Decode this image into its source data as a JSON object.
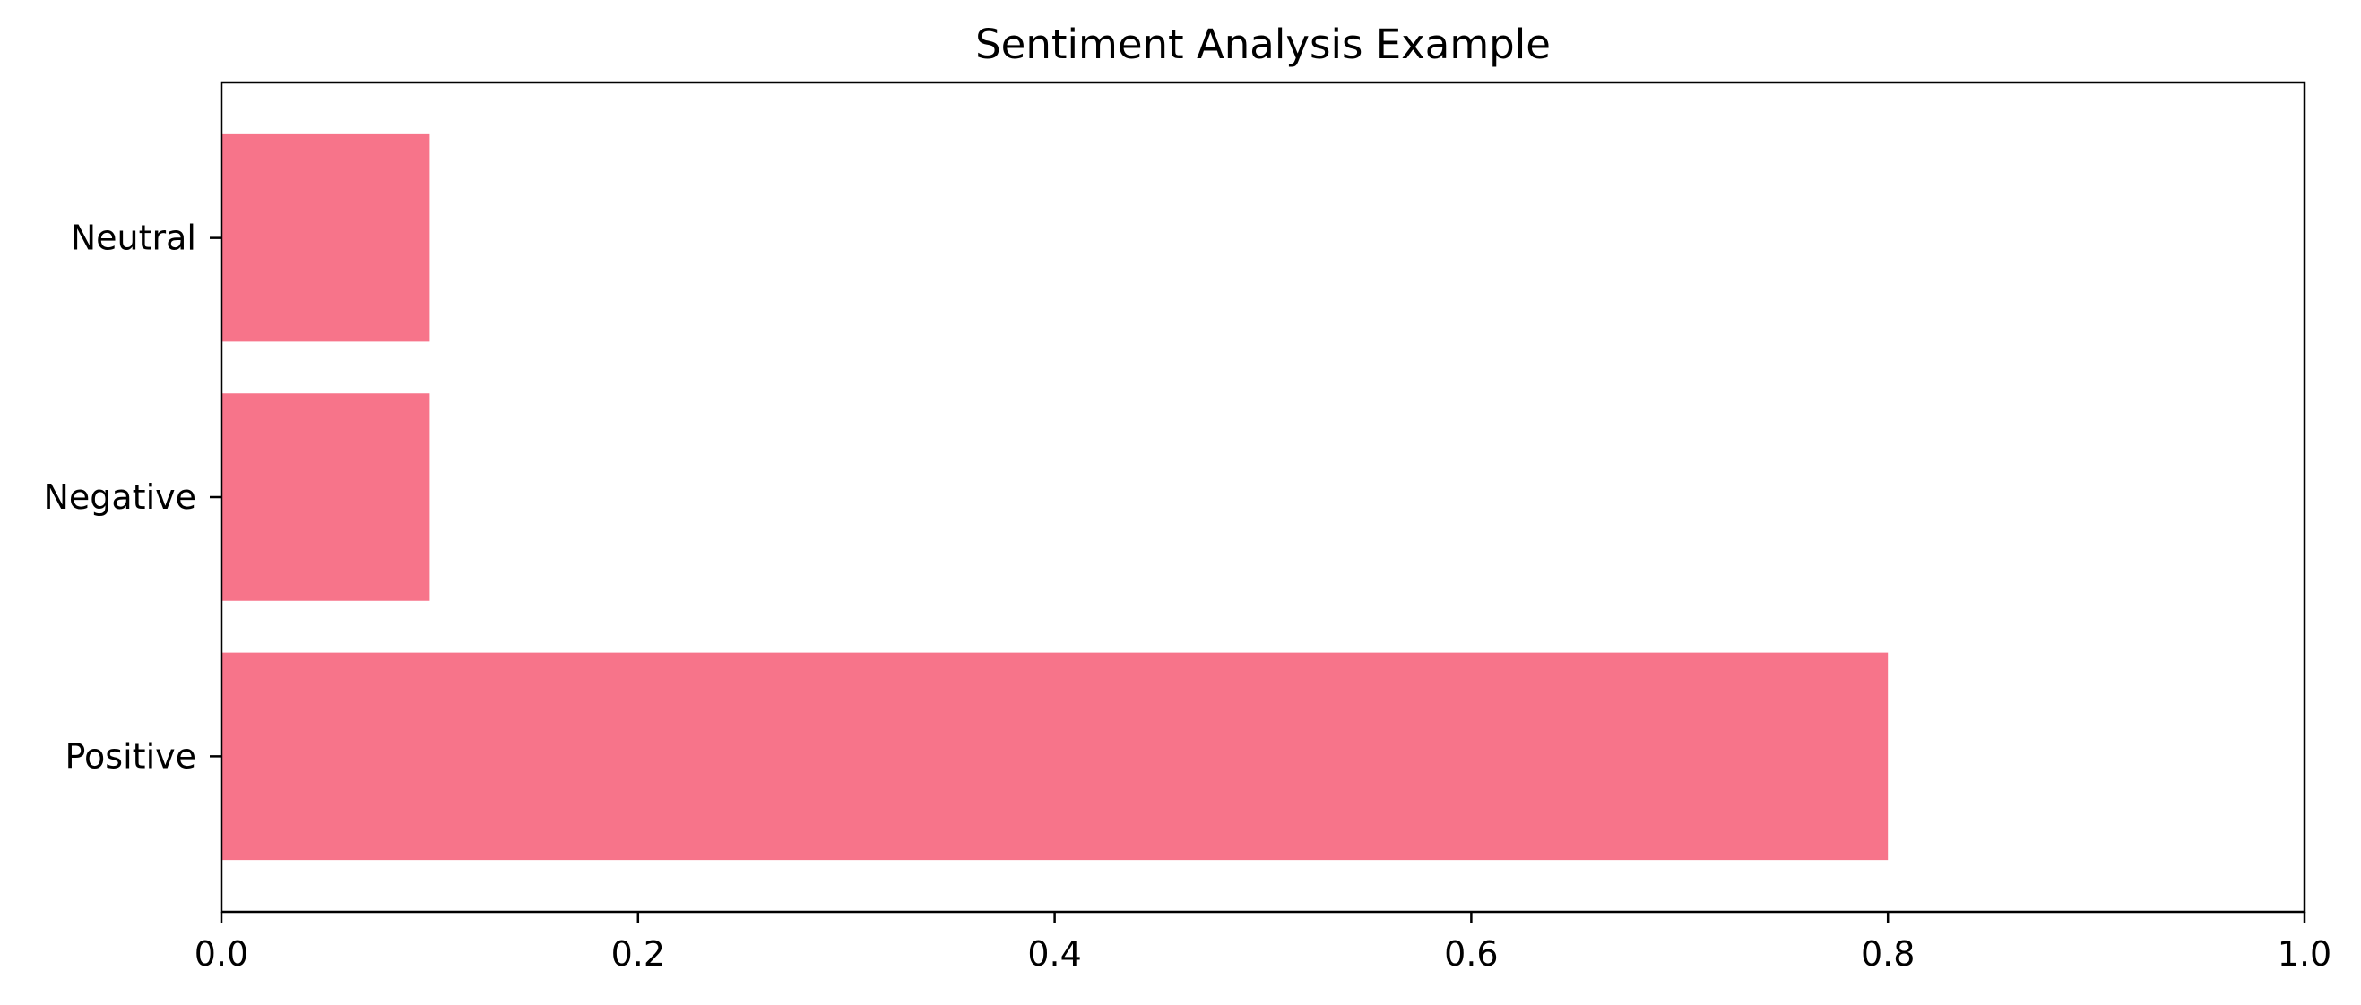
{
  "chart_data": {
    "type": "bar",
    "orientation": "horizontal",
    "title": "Sentiment Analysis Example",
    "xlabel": "",
    "ylabel": "",
    "categories": [
      "Positive",
      "Negative",
      "Neutral"
    ],
    "values": [
      0.8,
      0.1,
      0.1
    ],
    "xlim": [
      0.0,
      1.0
    ],
    "xticks": [
      "0.0",
      "0.2",
      "0.4",
      "0.6",
      "0.8",
      "1.0"
    ],
    "grid": false,
    "legend": "none",
    "bar_color": "#f7748a"
  }
}
